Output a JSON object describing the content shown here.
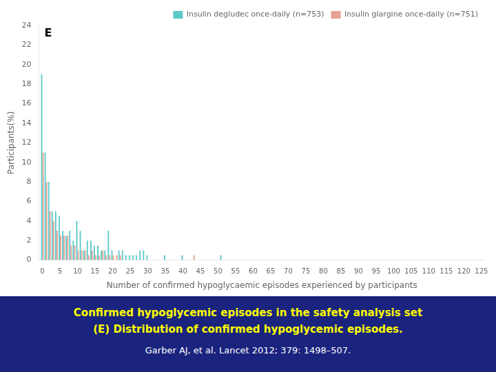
{
  "chart_data": {
    "type": "bar",
    "title": "Confirmed hypoglycemic episodes in the safety analysis set",
    "subtitle": "(E) Distribution of confirmed hypoglycemic episodes.",
    "annotations": [
      "E",
      "Garber AJ, et al. Lancet 2012; 379: 1498–507."
    ],
    "xlabel": "Number of confirmed hypoglycaemic episodes experienced by participants",
    "ylabel": "Participants(%)",
    "x": [
      0,
      1,
      2,
      3,
      4,
      5,
      6,
      7,
      8,
      9,
      10,
      11,
      12,
      13,
      14,
      15,
      16,
      17,
      18,
      19,
      20,
      21,
      22,
      23,
      24,
      25,
      26,
      27,
      28,
      29,
      30,
      31,
      32,
      33,
      34,
      35,
      36,
      37,
      38,
      39,
      40,
      41,
      42,
      43,
      44,
      45,
      46,
      47,
      48,
      49,
      50,
      51,
      52,
      53,
      54,
      55,
      56,
      57,
      58,
      59,
      60,
      61,
      62,
      63,
      64,
      65,
      66,
      67,
      68,
      69,
      70,
      71,
      72,
      73,
      74,
      75,
      76,
      77,
      78,
      79,
      80,
      81,
      82,
      83,
      84,
      85,
      86,
      87,
      88,
      89,
      90,
      91,
      92,
      93,
      94,
      95,
      96,
      97,
      98,
      99,
      100,
      101,
      102,
      103,
      104,
      105,
      106,
      107,
      108,
      109,
      110,
      111,
      112,
      113,
      114,
      115,
      116,
      117,
      118,
      119,
      120,
      121,
      122,
      123,
      124,
      125,
      126
    ],
    "series": [
      {
        "name": "Insulin degludec once-daily (n=753)",
        "color": "#5BC8C8",
        "values": [
          19,
          11,
          8,
          5,
          5,
          4.5,
          3,
          2.5,
          3,
          2,
          4,
          3,
          1,
          2,
          2,
          1.5,
          1.5,
          1,
          1,
          3,
          1,
          0,
          1,
          1,
          0.5,
          0.5,
          0.5,
          0.5,
          1,
          1,
          0.5,
          0,
          0,
          0,
          0,
          0.5,
          0,
          0,
          0,
          0,
          0.5,
          0,
          0,
          0,
          0,
          0,
          0,
          0,
          0,
          0,
          0,
          0.5,
          0,
          0,
          0,
          0,
          0,
          0,
          0,
          0,
          0,
          0,
          0,
          0,
          0,
          0,
          0,
          0,
          0,
          0,
          0,
          0,
          0,
          0,
          0,
          0,
          0,
          0,
          0,
          0,
          0,
          0,
          0,
          0,
          0,
          0,
          0,
          0,
          0,
          0,
          0,
          0,
          0,
          0,
          0,
          0,
          0,
          0,
          0,
          0,
          0,
          0,
          0,
          0,
          0,
          0,
          0,
          0,
          0,
          0,
          0,
          0,
          0,
          0,
          0,
          0,
          0,
          0,
          0,
          0,
          0,
          0,
          0,
          0,
          0,
          0,
          0
        ]
      },
      {
        "name": "Insulin glargine once-daily (n=751)",
        "color": "#E8A090",
        "values": [
          11,
          8,
          5,
          4,
          3,
          2.5,
          2.5,
          2.5,
          1.5,
          1.5,
          1,
          1,
          1,
          0.5,
          1,
          0.5,
          0.5,
          1,
          0.5,
          0.5,
          0.5,
          0.5,
          0.5,
          0,
          0,
          0,
          0,
          0,
          0,
          0,
          0,
          0,
          0,
          0,
          0,
          0,
          0,
          0,
          0,
          0,
          0,
          0,
          0,
          0.5,
          0,
          0,
          0,
          0,
          0,
          0,
          0,
          0,
          0,
          0,
          0,
          0,
          0,
          0,
          0,
          0,
          0,
          0,
          0,
          0,
          0,
          0,
          0,
          0,
          0,
          0,
          0,
          0,
          0,
          0,
          0,
          0,
          0,
          0,
          0,
          0,
          0,
          0,
          0,
          0,
          0,
          0,
          0,
          0,
          0,
          0,
          0,
          0,
          0,
          0,
          0,
          0,
          0,
          0,
          0,
          0,
          0,
          0,
          0,
          0,
          0,
          0,
          0,
          0,
          0,
          0,
          0,
          0,
          0,
          0,
          0,
          0,
          0,
          0,
          0,
          0,
          0,
          0,
          0,
          0,
          0,
          0,
          0
        ]
      }
    ],
    "xlim": [
      -1,
      126
    ],
    "xticks": [
      0,
      5,
      10,
      15,
      20,
      25,
      30,
      35,
      40,
      45,
      50,
      55,
      60,
      65,
      70,
      75,
      80,
      85,
      90,
      95,
      100,
      105,
      110,
      115,
      120,
      125
    ],
    "ylim": [
      0,
      24
    ],
    "yticks": [
      0,
      2,
      4,
      6,
      8,
      10,
      12,
      14,
      16,
      18,
      20,
      22,
      24
    ],
    "grid": false,
    "legend": "upper right"
  }
}
